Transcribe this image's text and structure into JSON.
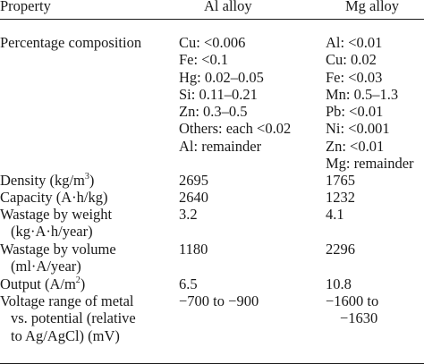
{
  "header": {
    "property": "Property",
    "al_alloy": "Al alloy",
    "mg_alloy": "Mg alloy"
  },
  "rows": {
    "composition": {
      "property": "Percentage composition",
      "al": [
        "Cu: <0.006",
        "Fe: <0.1",
        "Hg: 0.02–0.05",
        "Si: 0.11–0.21",
        "Zn: 0.3–0.5",
        "Others: each <0.02",
        "Al: remainder"
      ],
      "mg": [
        "Al: <0.01",
        "Cu: 0.02",
        "Fe: <0.03",
        "Mn: 0.5–1.3",
        "Pb: <0.01",
        "Ni: <0.001",
        "Zn: <0.01",
        "Mg: remainder"
      ]
    },
    "density": {
      "property_main": "Density (kg/m",
      "property_sup": "3",
      "property_end": ")",
      "al": "2695",
      "mg": "1765"
    },
    "capacity": {
      "property": "Capacity (A·h/kg)",
      "al": "2640",
      "mg": "1232"
    },
    "wastage_weight": {
      "property_line1": "Wastage by weight",
      "property_line2": "(kg·A·h/year)",
      "al": "3.2",
      "mg": "4.1"
    },
    "wastage_volume": {
      "property_line1": "Wastage by volume",
      "property_line2": "(ml·A/year)",
      "al": "1180",
      "mg": "2296"
    },
    "output": {
      "property_main": "Output (A/m",
      "property_sup": "2",
      "property_end": ")",
      "al": "6.5",
      "mg": "10.8"
    },
    "voltage": {
      "property_line1": "Voltage range of metal",
      "property_line2": "vs. potential (relative",
      "property_line3": "to Ag/AgCl) (mV)",
      "al": "−700 to −900",
      "mg_line1": "−1600 to",
      "mg_line2": "−1630"
    }
  }
}
